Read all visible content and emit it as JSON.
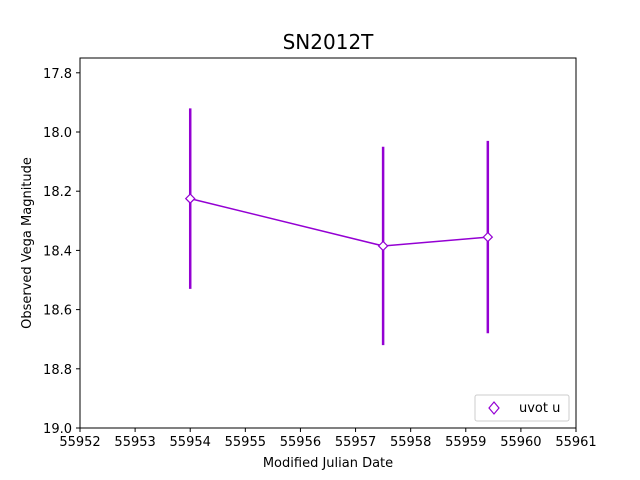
{
  "chart_data": {
    "type": "scatter",
    "title": "SN2012T",
    "xlabel": "Modified Julian Date",
    "ylabel": "Observed Vega Magnitude",
    "xlim": [
      55952,
      55961
    ],
    "ylim": [
      19.0,
      17.75
    ],
    "y_inverted": true,
    "xticks": [
      "55952",
      "55953",
      "55954",
      "55955",
      "55956",
      "55957",
      "55958",
      "55959",
      "55960",
      "55961"
    ],
    "yticks": [
      "17.8",
      "18.0",
      "18.2",
      "18.4",
      "18.6",
      "18.8",
      "19.0"
    ],
    "grid": false,
    "legend_position": "lower-right",
    "series": [
      {
        "name": "uvot u",
        "color": "#9400d3",
        "marker": "diamond-open",
        "x": [
          55954.0,
          55957.5,
          55959.4
        ],
        "y": [
          18.225,
          18.385,
          18.355
        ],
        "yerr": [
          0.305,
          0.335,
          0.325
        ]
      }
    ]
  }
}
